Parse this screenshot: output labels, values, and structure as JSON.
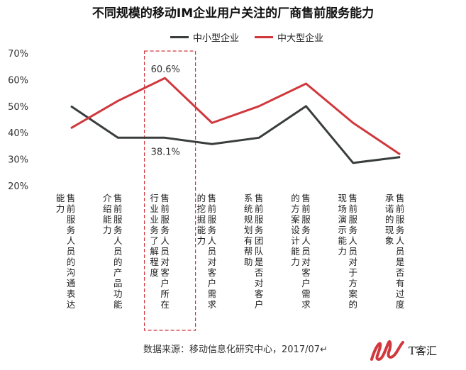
{
  "chart_data": {
    "type": "line",
    "title": "不同规模的移动IM企业用户关注的厂商售前服务能力",
    "categories": [
      "售前服务人员的沟通表达能力",
      "售前服务人员的产品功能介绍能力",
      "售前服务人员对客户所在行业业务了解程度",
      "售前服务人员对客户需求的挖掘能力",
      "售前服务团队是否对客户系统规划有帮助",
      "售前服务人员对客户需求的方案设计能力",
      "售前服务人员对于方案的现场演示能力",
      "售前服务人员是否有过度承诺的现象"
    ],
    "series": [
      {
        "name": "中小型企业",
        "color": "#3a3d3d",
        "values": [
          50.0,
          38.1,
          38.1,
          35.7,
          38.1,
          50.0,
          28.6,
          30.8
        ]
      },
      {
        "name": "中大型企业",
        "color": "#d0383d",
        "values": [
          41.7,
          52.0,
          60.6,
          43.7,
          50.0,
          58.5,
          43.7,
          31.8
        ]
      }
    ],
    "yticks": [
      "70%",
      "60%",
      "50%",
      "40%",
      "30%",
      "20%"
    ],
    "ylim": [
      20,
      70
    ],
    "annotations": [
      {
        "text": "60.6%",
        "series": 1,
        "index": 2
      },
      {
        "text": "38.1%",
        "series": 0,
        "index": 2
      }
    ],
    "grid": false,
    "legend_position": "top-center",
    "highlight_index": 2
  },
  "source": "数据来源：移动信息化研究中心，2017/07↵",
  "logo": {
    "text": "T客汇"
  }
}
